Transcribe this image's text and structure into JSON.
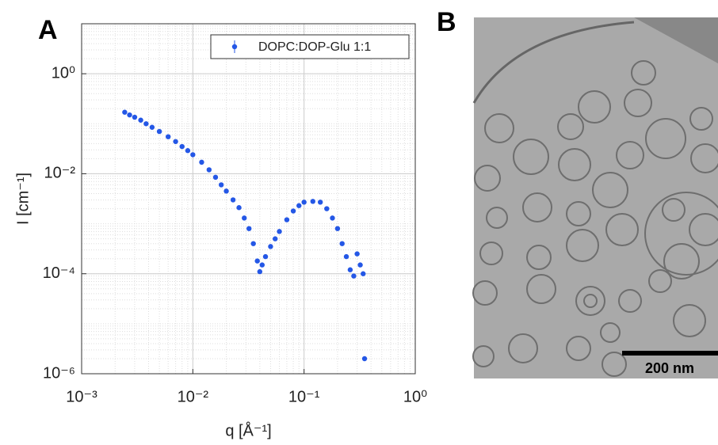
{
  "panels": [
    "A",
    "B"
  ],
  "micrograph": {
    "scale_bar": "200 nm"
  },
  "chart_data": {
    "type": "scatter",
    "xlabel": "q [Å⁻¹]",
    "ylabel": "I [cm⁻¹]",
    "xscale": "log",
    "yscale": "log",
    "grid": true,
    "legend": "top-right",
    "xlim": [
      0.001,
      1
    ],
    "ylim": [
      1e-06,
      10
    ],
    "xticks": [
      {
        "value": 0.001,
        "label": "10⁻³"
      },
      {
        "value": 0.01,
        "label": "10⁻²"
      },
      {
        "value": 0.1,
        "label": "10⁻¹"
      },
      {
        "value": 1,
        "label": "10⁰"
      }
    ],
    "yticks": [
      {
        "value": 1e-06,
        "label": "10⁻⁶"
      },
      {
        "value": 0.0001,
        "label": "10⁻⁴"
      },
      {
        "value": 0.01,
        "label": "10⁻²"
      },
      {
        "value": 1,
        "label": "10⁰"
      }
    ],
    "series": [
      {
        "name": "DOPC:DOP-Glu 1:1",
        "color": "#2457e6",
        "x": [
          0.00244,
          0.0027,
          0.003,
          0.0034,
          0.0038,
          0.0043,
          0.005,
          0.006,
          0.007,
          0.008,
          0.009,
          0.01,
          0.012,
          0.014,
          0.016,
          0.018,
          0.02,
          0.023,
          0.026,
          0.029,
          0.032,
          0.035,
          0.038,
          0.04,
          0.042,
          0.045,
          0.05,
          0.055,
          0.06,
          0.07,
          0.08,
          0.09,
          0.1,
          0.12,
          0.14,
          0.16,
          0.18,
          0.2,
          0.22,
          0.24,
          0.26,
          0.28,
          0.3,
          0.32,
          0.34,
          0.35
        ],
        "values": [
          0.17,
          0.15,
          0.135,
          0.118,
          0.1,
          0.085,
          0.07,
          0.055,
          0.044,
          0.035,
          0.029,
          0.024,
          0.017,
          0.012,
          0.0085,
          0.006,
          0.0045,
          0.003,
          0.0021,
          0.0013,
          0.0008,
          0.0004,
          0.00018,
          0.00011,
          0.00015,
          0.00022,
          0.00035,
          0.0005,
          0.0007,
          0.0012,
          0.0018,
          0.0023,
          0.0027,
          0.0028,
          0.0027,
          0.002,
          0.0013,
          0.0008,
          0.0004,
          0.00022,
          0.00012,
          9e-05,
          0.00025,
          0.00015,
          0.0001,
          2e-06
        ]
      }
    ]
  }
}
